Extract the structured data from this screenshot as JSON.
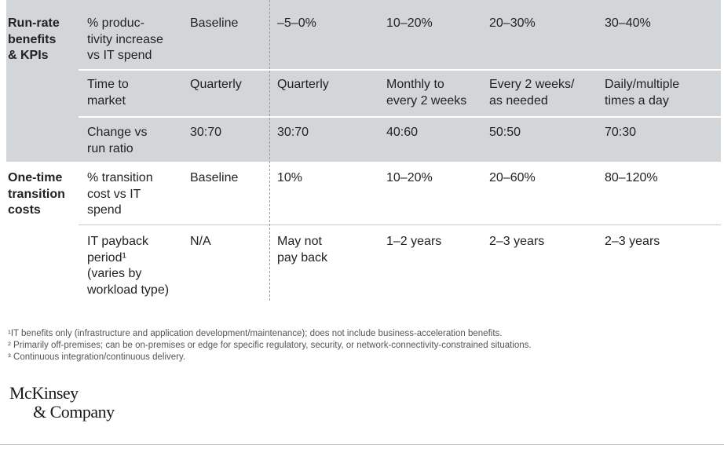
{
  "table": {
    "groups": [
      {
        "label": [
          "Run-rate",
          "benefits",
          "& KPIs"
        ],
        "rows": [
          {
            "metric": [
              "% produc-",
              "tivity increase",
              "vs IT spend"
            ],
            "cells": [
              [
                "Baseline"
              ],
              [
                "–5–0%"
              ],
              [
                "10–20%"
              ],
              [
                "20–30%"
              ],
              [
                "30–40%"
              ]
            ]
          },
          {
            "metric": [
              "Time to",
              "market"
            ],
            "cells": [
              [
                "Quarterly"
              ],
              [
                "Quarterly"
              ],
              [
                "Monthly to",
                "every 2 weeks"
              ],
              [
                "Every 2 weeks/",
                "as needed"
              ],
              [
                "Daily/multiple",
                "times a day"
              ]
            ]
          },
          {
            "metric": [
              "Change vs",
              "run ratio"
            ],
            "cells": [
              [
                "30:70"
              ],
              [
                "30:70"
              ],
              [
                "40:60"
              ],
              [
                "50:50"
              ],
              [
                "70:30"
              ]
            ]
          }
        ]
      },
      {
        "label": [
          "One-time",
          "transition",
          "costs"
        ],
        "rows": [
          {
            "metric": [
              "% transition",
              "cost vs IT",
              "spend"
            ],
            "cells": [
              [
                "Baseline"
              ],
              [
                "10%"
              ],
              [
                "10–20%"
              ],
              [
                "20–60%"
              ],
              [
                "80–120%"
              ]
            ]
          },
          {
            "metric": [
              "IT payback",
              "period¹",
              "(varies by",
              "workload type)"
            ],
            "cells": [
              [
                "N/A"
              ],
              [
                "May not",
                "pay back"
              ],
              [
                "1–2 years"
              ],
              [
                "2–3 years"
              ],
              [
                "2–3 years"
              ]
            ]
          }
        ]
      }
    ]
  },
  "footnotes": [
    "¹IT benefits only (infrastructure and application development/maintenance); does not include business-acceleration benefits.",
    "² Primarily off-premises; can be on-premises or edge for specific regulatory, security, or network-connectivity-constrained situations.",
    "³ Continuous integration/continuous delivery."
  ],
  "logo": [
    "McKinsey",
    "& Company"
  ]
}
